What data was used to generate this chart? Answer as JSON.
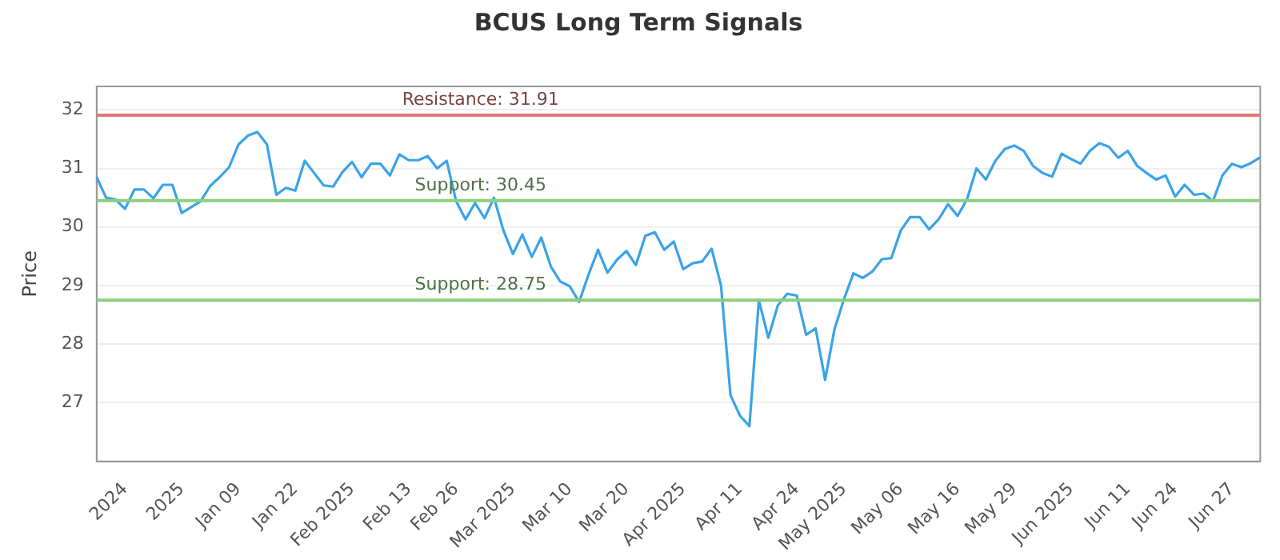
{
  "chart_data": {
    "type": "line",
    "title": "BCUS Long Term Signals",
    "ylabel": "Price",
    "categories": [
      null,
      null,
      null,
      "2024",
      null,
      null,
      null,
      null,
      null,
      "2025",
      null,
      null,
      null,
      null,
      null,
      "Jan 09",
      null,
      null,
      null,
      null,
      null,
      "Jan 22",
      null,
      null,
      null,
      null,
      null,
      "Feb 2025",
      null,
      null,
      null,
      null,
      null,
      "Feb 13",
      null,
      null,
      null,
      null,
      "Feb 26",
      null,
      null,
      null,
      null,
      null,
      "Mar 2025",
      null,
      null,
      null,
      null,
      null,
      "Mar 10",
      null,
      null,
      null,
      null,
      null,
      "Mar 20",
      null,
      null,
      null,
      null,
      null,
      "Apr 2025",
      null,
      null,
      null,
      null,
      null,
      "Apr 11",
      null,
      null,
      null,
      null,
      null,
      "Apr 24",
      null,
      null,
      null,
      null,
      "May 2025",
      null,
      null,
      null,
      null,
      null,
      "May 06",
      null,
      null,
      null,
      null,
      null,
      "May 16",
      null,
      null,
      null,
      null,
      null,
      "May 29",
      null,
      null,
      null,
      null,
      null,
      "Jun 2025",
      null,
      null,
      null,
      null,
      null,
      "Jun 11",
      null,
      null,
      null,
      null,
      "Jun 24",
      null,
      null,
      null,
      null,
      null,
      "Jun 27",
      null,
      null,
      null
    ],
    "series": [
      {
        "color": "#3aa3e8",
        "values": [
          30.85,
          30.5,
          30.47,
          30.31,
          30.64,
          30.64,
          30.49,
          30.72,
          30.72,
          30.24,
          30.34,
          30.44,
          30.7,
          30.85,
          31.02,
          31.41,
          31.56,
          31.62,
          31.41,
          30.55,
          30.67,
          30.62,
          31.13,
          30.92,
          30.71,
          30.69,
          30.94,
          31.11,
          30.85,
          31.08,
          31.08,
          30.88,
          31.24,
          31.14,
          31.14,
          31.21,
          31.0,
          31.13,
          30.44,
          30.13,
          30.41,
          30.15,
          30.5,
          29.94,
          29.54,
          29.87,
          29.49,
          29.82,
          29.33,
          29.07,
          28.99,
          28.72,
          29.19,
          29.61,
          29.22,
          29.44,
          29.59,
          29.35,
          29.85,
          29.91,
          29.61,
          29.75,
          29.28,
          29.38,
          29.41,
          29.63,
          29.0,
          27.13,
          26.78,
          26.6,
          28.75,
          28.11,
          28.66,
          28.86,
          28.83,
          28.16,
          28.27,
          27.39,
          28.26,
          28.77,
          29.21,
          29.13,
          29.24,
          29.45,
          29.47,
          29.94,
          30.17,
          30.17,
          29.96,
          30.13,
          30.39,
          30.19,
          30.47,
          31.0,
          30.81,
          31.13,
          31.33,
          31.39,
          31.3,
          31.04,
          30.92,
          30.86,
          31.25,
          31.16,
          31.08,
          31.3,
          31.43,
          31.37,
          31.18,
          31.3,
          31.04,
          30.92,
          30.81,
          30.88,
          30.52,
          30.72,
          30.55,
          30.57,
          30.44,
          30.88,
          31.08,
          31.02,
          31.09,
          31.19
        ]
      }
    ],
    "ylim": [
      26,
      32.4
    ],
    "yticks": [
      27,
      28,
      29,
      30,
      31,
      32
    ],
    "grid": "y",
    "marker": "none",
    "line_style": "solid",
    "legend": false,
    "ref_lines": [
      {
        "axis": "y",
        "value": 31.91,
        "label": "Resistance: 31.91",
        "color": "#e07a7a"
      },
      {
        "axis": "y",
        "value": 30.45,
        "label": "Support: 30.45",
        "color": "#8ccf7e"
      },
      {
        "axis": "y",
        "value": 28.75,
        "label": "Support: 28.75",
        "color": "#8ccf7e"
      }
    ]
  }
}
